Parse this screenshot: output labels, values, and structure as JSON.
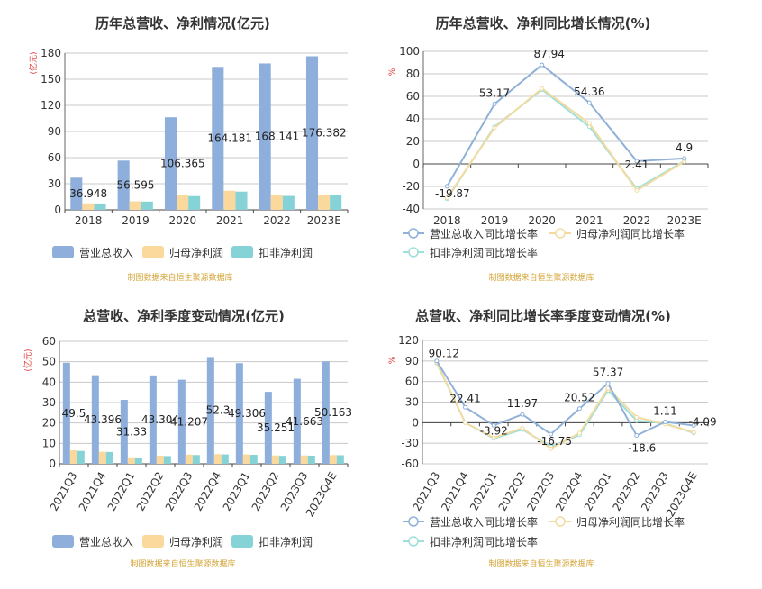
{
  "colors": {
    "revenue": "#8eaedb",
    "net_profit": "#fbd89b",
    "deducted_net_profit": "#86d3d7",
    "source": "#d4a437",
    "unit": "#e03030",
    "axis_text": "#333333",
    "grid": "#c8c8c8"
  },
  "chart_data": [
    {
      "type": "bar",
      "title": "历年总营收、净利情况(亿元)",
      "unit": "(亿元)",
      "categories": [
        "2018",
        "2019",
        "2020",
        "2021",
        "2022",
        "2023E"
      ],
      "yticks": [
        "0",
        "30",
        "60",
        "90",
        "120",
        "150",
        "180"
      ],
      "ylim": [
        0,
        180
      ],
      "series": [
        {
          "name": "营业总收入",
          "values": [
            36.948,
            56.595,
            106.365,
            164.181,
            168.141,
            176.382
          ],
          "labels": [
            "36.948",
            "56.595",
            "106.365",
            "164.181",
            "168.141",
            "176.382"
          ]
        },
        {
          "name": "归母净利润",
          "values": [
            7.5,
            9.8,
            16.5,
            22.0,
            16.5,
            17.5
          ]
        },
        {
          "name": "扣非净利润",
          "values": [
            7.3,
            9.5,
            15.8,
            21.0,
            16.0,
            17.2
          ]
        }
      ],
      "grid": true,
      "legend": "bottom-left",
      "source": "制图数据来自恒生聚源数据库"
    },
    {
      "type": "line",
      "title": "历年总营收、净利同比增长情况(%)",
      "unit": "%",
      "categories": [
        "2018",
        "2019",
        "2020",
        "2021",
        "2022",
        "2023E"
      ],
      "yticks": [
        "-40",
        "-20",
        "0",
        "20",
        "40",
        "60",
        "80",
        "100"
      ],
      "ylim": [
        -40,
        100
      ],
      "series": [
        {
          "name": "营业总收入同比增长率",
          "values": [
            -19.87,
            53.17,
            87.94,
            54.36,
            2.41,
            4.9
          ],
          "labels": [
            "-19.87",
            "53.17",
            "87.94",
            "54.36",
            "2.41",
            "4.9"
          ]
        },
        {
          "name": "归母净利润同比增长率",
          "values": [
            -30.0,
            32.0,
            67.0,
            36.0,
            -23.5,
            2.0
          ]
        },
        {
          "name": "扣非净利润同比增长率",
          "values": [
            -31.0,
            33.0,
            66.0,
            33.0,
            -22.0,
            2.5
          ]
        }
      ],
      "grid": true,
      "legend": "bottom",
      "source": "制图数据来自恒生聚源数据库"
    },
    {
      "type": "bar",
      "title": "总营收、净利季度变动情况(亿元)",
      "unit": "(亿元)",
      "categories": [
        "2021Q3",
        "2021Q4",
        "2022Q1",
        "2022Q2",
        "2022Q3",
        "2022Q4",
        "2023Q1",
        "2023Q2",
        "2023Q3",
        "2023Q4E"
      ],
      "yticks": [
        "0",
        "10",
        "20",
        "30",
        "40",
        "50",
        "60"
      ],
      "ylim": [
        0,
        60
      ],
      "series": [
        {
          "name": "营业总收入",
          "values": [
            49.5,
            43.396,
            31.33,
            43.304,
            41.207,
            52.3,
            49.306,
            35.251,
            41.663,
            50.163
          ],
          "labels": [
            "49.5",
            "43.396",
            "31.33",
            "43.304",
            "41.207",
            "52.3",
            "49.306",
            "35.251",
            "41.663",
            "50.163"
          ]
        },
        {
          "name": "归母净利润",
          "values": [
            6.6,
            5.9,
            3.2,
            4.0,
            4.5,
            4.7,
            4.6,
            4.1,
            4.1,
            4.3
          ]
        },
        {
          "name": "扣非净利润",
          "values": [
            6.3,
            5.8,
            3.1,
            3.8,
            4.3,
            4.6,
            4.4,
            3.9,
            4.0,
            4.2
          ]
        }
      ],
      "grid": true,
      "legend": "bottom-left",
      "source": "制图数据来自恒生聚源数据库"
    },
    {
      "type": "line",
      "title": "总营收、净利同比增长率季度变动情况(%)",
      "unit": "%",
      "categories": [
        "2021Q3",
        "2021Q4",
        "2022Q1",
        "2022Q2",
        "2022Q3",
        "2022Q4",
        "2023Q1",
        "2023Q2",
        "2023Q3",
        "2023Q4E"
      ],
      "yticks": [
        "-60",
        "-30",
        "0",
        "30",
        "60",
        "90",
        "120"
      ],
      "ylim": [
        -60,
        120
      ],
      "series": [
        {
          "name": "营业总收入同比增长率",
          "values": [
            90.12,
            22.41,
            -3.92,
            11.97,
            -16.75,
            20.52,
            57.37,
            -18.6,
            1.11,
            -4.09
          ],
          "labels": [
            "90.12",
            "22.41",
            "-3.92",
            "11.97",
            "-16.75",
            "20.52",
            "57.37",
            "-18.6",
            "1.11",
            "-4.09"
          ]
        },
        {
          "name": "归母净利润同比增长率",
          "values": [
            88.0,
            0.0,
            -22.0,
            -8.0,
            -38.0,
            -15.0,
            50.0,
            8.0,
            -2.0,
            -14.0
          ]
        },
        {
          "name": "扣非净利润同比增长率",
          "values": [
            87.0,
            0.0,
            -23.0,
            -10.0,
            -35.0,
            -18.0,
            47.0,
            3.0,
            -1.0,
            -15.0
          ]
        }
      ],
      "grid": true,
      "legend": "bottom",
      "source": "制图数据来自恒生聚源数据库"
    }
  ]
}
